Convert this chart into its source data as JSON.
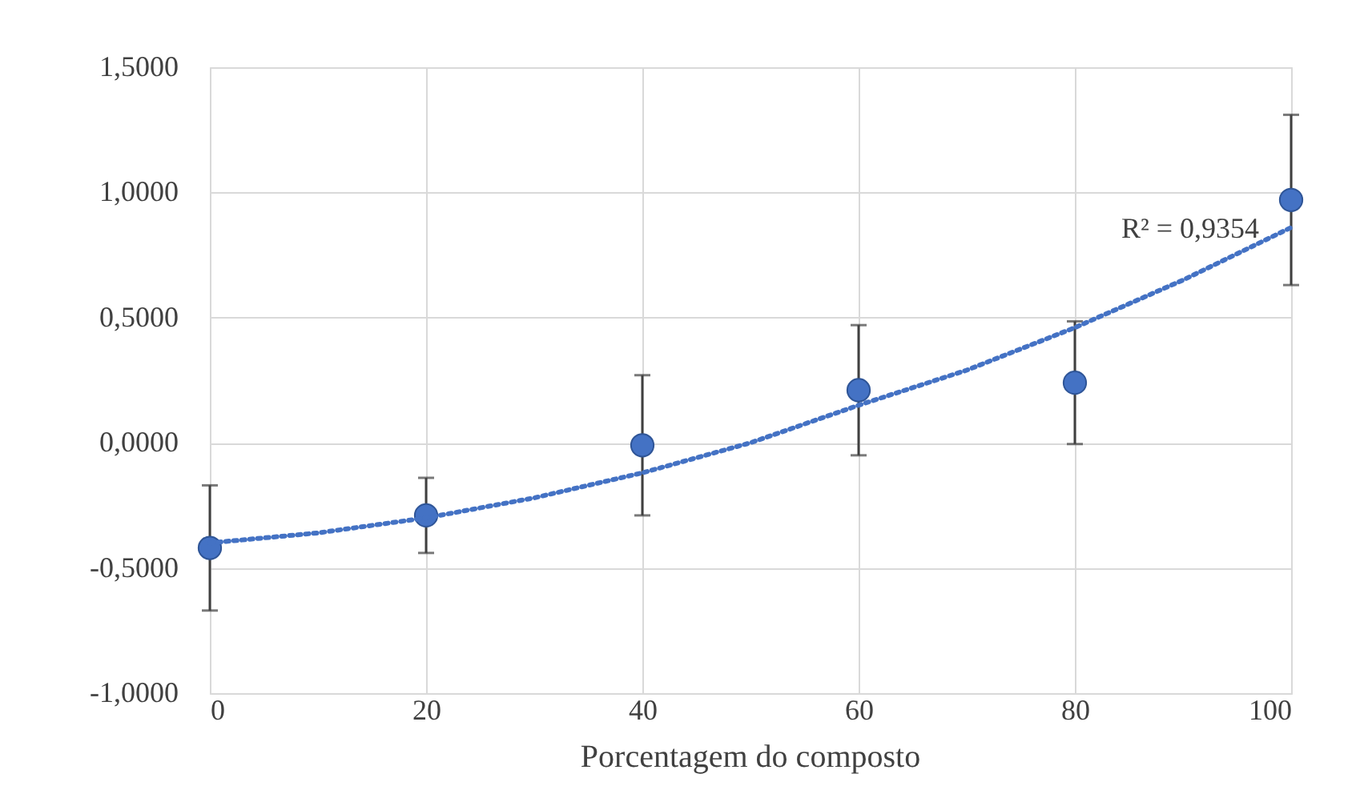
{
  "chart_data": {
    "type": "scatter",
    "xlabel": "Porcentagem do composto",
    "xlim": [
      0,
      100
    ],
    "xticks": [
      0,
      20,
      40,
      60,
      80,
      100
    ],
    "ylim": [
      -1,
      1.5
    ],
    "yticks": [
      {
        "value": -1,
        "label": "-1,0000"
      },
      {
        "value": -0.5,
        "label": "-0,5000"
      },
      {
        "value": 0,
        "label": "0,0000"
      },
      {
        "value": 0.5,
        "label": "0,5000"
      },
      {
        "value": 1,
        "label": "1,0000"
      },
      {
        "value": 1.5,
        "label": "1,5000"
      }
    ],
    "grid": true,
    "series": [
      {
        "color": "#4472c4",
        "marker": "circle",
        "x": [
          0,
          20,
          40,
          60,
          80,
          100
        ],
        "values": [
          -0.42,
          -0.29,
          -0.01,
          0.21,
          0.24,
          0.97
        ],
        "errors": [
          0.25,
          0.15,
          0.28,
          0.26,
          0.245,
          0.34
        ]
      },
      {
        "type": "line",
        "color": "#4472c4",
        "line_style": "dotted",
        "x": [
          0,
          10,
          20,
          30,
          40,
          50,
          60,
          70,
          80,
          90,
          100
        ],
        "values": [
          -0.4,
          -0.36,
          -0.3,
          -0.22,
          -0.12,
          0.0,
          0.15,
          0.29,
          0.46,
          0.65,
          0.86
        ]
      }
    ],
    "annotations": [
      "R² = 0,9354"
    ]
  }
}
